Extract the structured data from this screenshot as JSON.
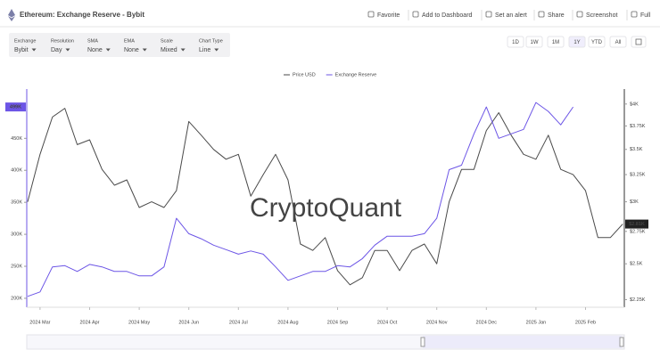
{
  "header": {
    "title": "Ethereum: Exchange Reserve - Bybit",
    "toolbar": [
      "Favorite",
      "Add to Dashboard",
      "Set an alert",
      "Share",
      "Screenshot",
      "Full"
    ]
  },
  "controls": [
    {
      "label": "Exchange",
      "value": "Bybit"
    },
    {
      "label": "Resolution",
      "value": "Day"
    },
    {
      "label": "SMA",
      "value": "None"
    },
    {
      "label": "EMA",
      "value": "None"
    },
    {
      "label": "Scale",
      "value": "Mixed"
    },
    {
      "label": "Chart Type",
      "value": "Line"
    }
  ],
  "ranges": [
    "1D",
    "1W",
    "1M",
    "1Y",
    "YTD",
    "All"
  ],
  "active_range": "1Y",
  "chart_data": {
    "type": "line",
    "watermark": "CryptoQuant",
    "categories": [
      null,
      "2024 Mar",
      null,
      null,
      null,
      "2024 Apr",
      null,
      null,
      null,
      "2024 May",
      null,
      null,
      null,
      "2024 Jun",
      null,
      null,
      null,
      "2024 Jul",
      null,
      null,
      null,
      "2024 Aug",
      null,
      null,
      null,
      "2024 Sep",
      null,
      null,
      null,
      "2024 Oct",
      null,
      null,
      null,
      "2024 Nov",
      null,
      null,
      null,
      "2024 Dec",
      null,
      null,
      null,
      "2025 Jan",
      null,
      null,
      null,
      "2025 Feb",
      null,
      null,
      null
    ],
    "series": [
      {
        "name": "Price USD",
        "color": "#4a4a4a",
        "axis": "y2",
        "end_label": "$2.81K",
        "values": [
          3000,
          3450,
          3850,
          3950,
          3550,
          3600,
          3300,
          3150,
          3200,
          2950,
          3000,
          2950,
          3100,
          3800,
          3650,
          3500,
          3400,
          3450,
          3050,
          3250,
          3450,
          3200,
          2650,
          2600,
          2700,
          2450,
          2350,
          2400,
          2600,
          2600,
          2450,
          2600,
          2650,
          2500,
          3000,
          3300,
          3300,
          3700,
          3900,
          3650,
          3450,
          3400,
          3650,
          3300,
          3250,
          3100,
          2700,
          2700,
          2810
        ]
      },
      {
        "name": "Exchange Reserve",
        "color": "#6c55e6",
        "end_label": "499K",
        "values": [
          203000,
          210000,
          249000,
          251000,
          242000,
          253000,
          249000,
          242000,
          242000,
          235000,
          235000,
          249000,
          325000,
          301000,
          293000,
          283000,
          276000,
          269000,
          274000,
          269000,
          249000,
          228000,
          235000,
          242000,
          242000,
          251000,
          249000,
          262000,
          283000,
          297000,
          297000,
          297000,
          301000,
          325000,
          401000,
          408000,
          457000,
          499000,
          450000,
          457000,
          464000,
          506000,
          492000,
          471000,
          499000,
          null,
          null,
          null,
          null
        ]
      }
    ],
    "ylim": [
      186000,
      527000
    ],
    "yticks": [
      {
        "value": 200000,
        "label": "200K"
      },
      {
        "value": 250000,
        "label": "250K"
      },
      {
        "value": 300000,
        "label": "300K"
      },
      {
        "value": 350000,
        "label": "350K"
      },
      {
        "value": 400000,
        "label": "400K"
      },
      {
        "value": 450000,
        "label": "450K"
      }
    ],
    "y2lim": [
      2200,
      4180
    ],
    "y2log": true,
    "y2ticks": [
      {
        "value": 2250,
        "label": "$2.25K"
      },
      {
        "value": 2500,
        "label": "$2.5K"
      },
      {
        "value": 2750,
        "label": "$2.75K"
      },
      {
        "value": 3000,
        "label": "$3K"
      },
      {
        "value": 3250,
        "label": "$3.25K"
      },
      {
        "value": 3500,
        "label": "$3.5K"
      },
      {
        "value": 3750,
        "label": "$3.75K"
      },
      {
        "value": 4000,
        "label": "$4K"
      }
    ],
    "grid": false
  }
}
